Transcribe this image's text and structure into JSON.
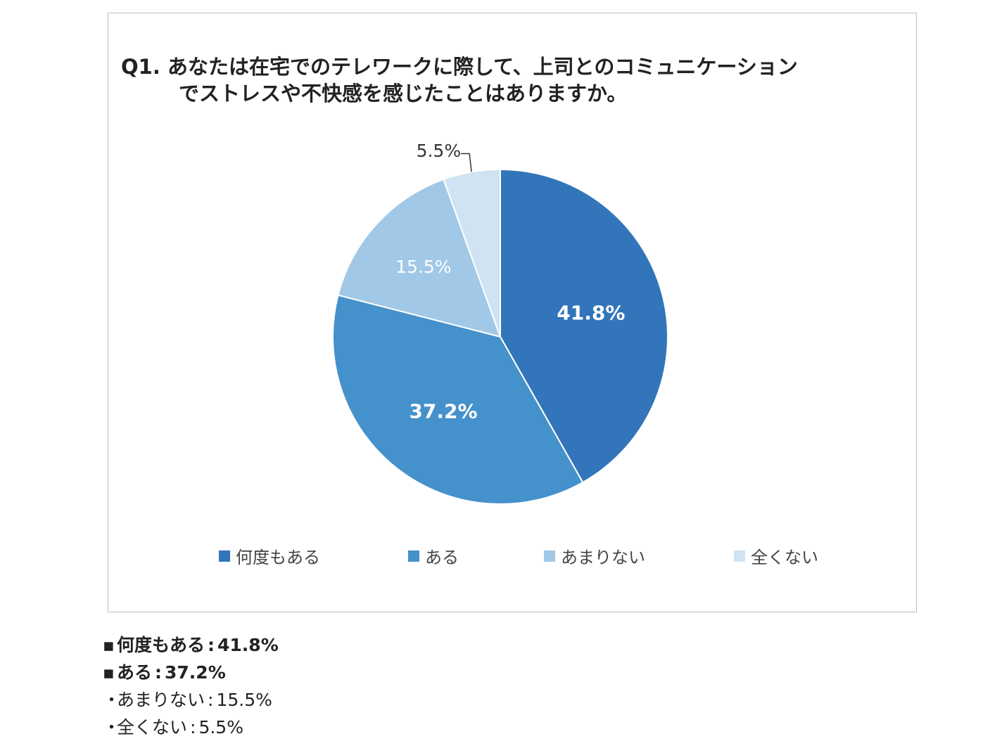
{
  "chart_data": {
    "type": "pie",
    "title_line1": "Q1. あなたは在宅でのテレワークに際して、上司とのコミュニケーション",
    "title_line2": "でストレスや不快感を感じたことはありますか。",
    "slices": [
      {
        "name": "何度もある",
        "value": 41.8,
        "label": "41.8%",
        "color": "#3375ba"
      },
      {
        "name": "ある",
        "value": 37.2,
        "label": "37.2%",
        "color": "#4591cb"
      },
      {
        "name": "あまりない",
        "value": 15.5,
        "label": "15.5%",
        "color": "#a1c8e6"
      },
      {
        "name": "全くない",
        "value": 5.5,
        "label": "5.5%",
        "color": "#cfe3f2"
      }
    ],
    "legend_placement": "bottom"
  },
  "summary": {
    "bullet_bold": "▪",
    "bullet_normal": "・",
    "separator": ":",
    "items": [
      {
        "name": "何度もある",
        "value": "41.8%",
        "bold": true
      },
      {
        "name": "ある",
        "value": "37.2%",
        "bold": true
      },
      {
        "name": "あまりない",
        "value": "15.5%",
        "bold": false
      },
      {
        "name": "全くない",
        "value": "5.5%",
        "bold": false
      }
    ]
  }
}
